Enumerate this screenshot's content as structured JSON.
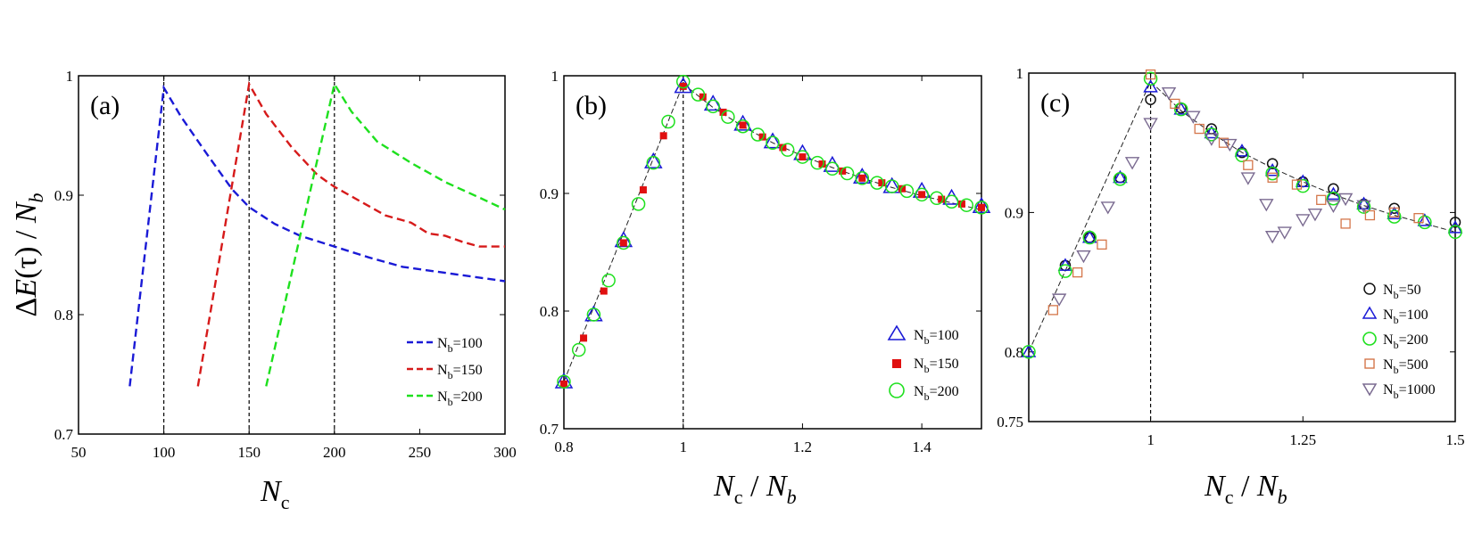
{
  "chart_data": [
    {
      "type": "line",
      "panel": "(a)",
      "ylabel": "ΔE(τ) / N_b",
      "ylabel_parts": {
        "delta": "Δ",
        "E": "E",
        "arg": "(τ)",
        "slash": " / ",
        "N": "N",
        "sub": "b"
      },
      "xlabel": "N_c",
      "xlabel_parts": {
        "N": "N",
        "sub": "c"
      },
      "xlim": [
        50,
        300
      ],
      "ylim": [
        0.7,
        1
      ],
      "xticks": [
        50,
        100,
        150,
        200,
        250,
        300
      ],
      "xtick_labels": [
        "50",
        "100",
        "150",
        "200",
        "250",
        "300"
      ],
      "yticks": [
        0.7,
        0.8,
        0.9,
        1
      ],
      "ytick_labels": [
        "0.7",
        "0.8",
        "0.9",
        "1"
      ],
      "vlines": [
        100,
        150,
        200
      ],
      "legend_position": "bottom-right",
      "series": [
        {
          "name": "N_b=100",
          "legend_main": "N",
          "legend_sub": "b",
          "legend_rest": "=100",
          "color": "#1a1ad6",
          "style": "dashed",
          "x": [
            80,
            100,
            110,
            125,
            140,
            150,
            165,
            180,
            200,
            220,
            240,
            260,
            280,
            300
          ],
          "y": [
            0.74,
            0.99,
            0.966,
            0.935,
            0.905,
            0.89,
            0.876,
            0.866,
            0.857,
            0.848,
            0.84,
            0.836,
            0.832,
            0.828
          ]
        },
        {
          "name": "N_b=150",
          "legend_main": "N",
          "legend_sub": "b",
          "legend_rest": "=150",
          "color": "#d61a1a",
          "style": "dashed",
          "x": [
            120,
            150,
            160,
            175,
            190,
            200,
            215,
            230,
            245,
            255,
            265,
            275,
            285,
            300
          ],
          "y": [
            0.74,
            0.993,
            0.968,
            0.94,
            0.917,
            0.907,
            0.895,
            0.883,
            0.877,
            0.868,
            0.866,
            0.861,
            0.857,
            0.857
          ]
        },
        {
          "name": "N_b=200",
          "legend_main": "N",
          "legend_sub": "b",
          "legend_rest": "=200",
          "color": "#1ee01e",
          "style": "dashed",
          "x": [
            160,
            200,
            210,
            225,
            245,
            265,
            285,
            300
          ],
          "y": [
            0.74,
            0.993,
            0.97,
            0.945,
            0.927,
            0.911,
            0.898,
            0.888
          ]
        }
      ]
    },
    {
      "type": "scatter",
      "panel": "(b)",
      "xlabel": "N_c / N_b",
      "xlabel_parts": {
        "N1": "N",
        "sub1": "c",
        "slash": " / ",
        "N2": "N",
        "sub2": "b"
      },
      "xlim": [
        0.8,
        1.5
      ],
      "ylim": [
        0.7,
        1
      ],
      "xticks": [
        0.8,
        1,
        1.2,
        1.4
      ],
      "xtick_labels": [
        "0.8",
        "1",
        "1.2",
        "1.4"
      ],
      "yticks": [
        0.7,
        0.8,
        0.9,
        1
      ],
      "ytick_labels": [
        "0.7",
        "0.8",
        "0.9",
        "1"
      ],
      "vlines": [
        1
      ],
      "fit_curve": {
        "x": [
          0.8,
          1.0,
          1.05,
          1.1,
          1.15,
          1.2,
          1.25,
          1.3,
          1.35,
          1.4,
          1.45,
          1.5
        ],
        "y": [
          0.74,
          0.993,
          0.973,
          0.957,
          0.943,
          0.932,
          0.922,
          0.913,
          0.905,
          0.898,
          0.892,
          0.886
        ]
      },
      "legend_position": "bottom-right",
      "series": [
        {
          "name": "N_b=100",
          "legend_main": "N",
          "legend_sub": "b",
          "legend_rest": "=100",
          "marker": "triangle",
          "color": "#1a1ad6",
          "x": [
            0.8,
            0.85,
            0.9,
            0.95,
            1.0,
            1.05,
            1.1,
            1.15,
            1.2,
            1.25,
            1.3,
            1.35,
            1.4,
            1.45,
            1.5
          ],
          "y": [
            0.74,
            0.797,
            0.86,
            0.927,
            0.991,
            0.976,
            0.959,
            0.944,
            0.934,
            0.924,
            0.914,
            0.906,
            0.902,
            0.896,
            0.889
          ]
        },
        {
          "name": "N_b=150",
          "legend_main": "N",
          "legend_sub": "b",
          "legend_rest": "=150",
          "marker": "square-filled",
          "color": "#e01010",
          "x": [
            0.8,
            0.833,
            0.867,
            0.9,
            0.933,
            0.967,
            1.0,
            1.033,
            1.067,
            1.1,
            1.133,
            1.167,
            1.2,
            1.233,
            1.267,
            1.3,
            1.333,
            1.367,
            1.4,
            1.433,
            1.467,
            1.5
          ],
          "y": [
            0.738,
            0.777,
            0.817,
            0.858,
            0.903,
            0.949,
            0.991,
            0.982,
            0.969,
            0.958,
            0.948,
            0.939,
            0.931,
            0.925,
            0.919,
            0.913,
            0.909,
            0.904,
            0.899,
            0.895,
            0.891,
            0.888
          ]
        },
        {
          "name": "N_b=200",
          "legend_main": "N",
          "legend_sub": "b",
          "legend_rest": "=200",
          "marker": "circle",
          "color": "#1ee01e",
          "x": [
            0.8,
            0.825,
            0.85,
            0.875,
            0.9,
            0.925,
            0.95,
            0.975,
            1.0,
            1.025,
            1.05,
            1.075,
            1.1,
            1.125,
            1.15,
            1.175,
            1.2,
            1.225,
            1.25,
            1.275,
            1.3,
            1.325,
            1.35,
            1.375,
            1.4,
            1.425,
            1.45,
            1.475,
            1.5
          ],
          "y": [
            0.74,
            0.767,
            0.797,
            0.826,
            0.858,
            0.891,
            0.926,
            0.961,
            0.995,
            0.984,
            0.974,
            0.965,
            0.957,
            0.95,
            0.943,
            0.937,
            0.931,
            0.926,
            0.921,
            0.917,
            0.913,
            0.909,
            0.906,
            0.902,
            0.899,
            0.896,
            0.893,
            0.89,
            0.888
          ]
        }
      ]
    },
    {
      "type": "scatter",
      "panel": "(c)",
      "xlabel": "N_c / N_b",
      "xlabel_parts": {
        "N1": "N",
        "sub1": "c",
        "slash": " / ",
        "N2": "N",
        "sub2": "b"
      },
      "xlim": [
        0.8,
        1.5
      ],
      "ylim": [
        0.75,
        1
      ],
      "xticks": [
        1,
        1.25,
        1.5
      ],
      "xtick_labels": [
        "1",
        "1.25",
        "1.5"
      ],
      "yticks": [
        0.75,
        0.8,
        0.9,
        1
      ],
      "ytick_labels": [
        "0.75",
        "0.8",
        "0.9",
        "1"
      ],
      "vlines": [
        1
      ],
      "fit_curve": {
        "x": [
          0.8,
          1.0,
          1.05,
          1.1,
          1.15,
          1.2,
          1.25,
          1.3,
          1.35,
          1.4,
          1.45,
          1.5
        ],
        "y": [
          0.8,
          0.994,
          0.973,
          0.957,
          0.943,
          0.932,
          0.922,
          0.913,
          0.905,
          0.898,
          0.892,
          0.886
        ]
      },
      "legend_position": "bottom-right",
      "series": [
        {
          "name": "N_b=50",
          "legend_main": "N",
          "legend_sub": "b",
          "legend_rest": "=50",
          "marker": "circle",
          "color": "#111111",
          "x": [
            0.86,
            0.9,
            0.95,
            1.0,
            1.05,
            1.1,
            1.15,
            1.2,
            1.25,
            1.3,
            1.35,
            1.4,
            1.5
          ],
          "y": [
            0.862,
            0.882,
            0.925,
            0.981,
            0.975,
            0.96,
            0.943,
            0.935,
            0.922,
            0.917,
            0.906,
            0.903,
            0.893
          ]
        },
        {
          "name": "N_b=100",
          "legend_main": "N",
          "legend_sub": "b",
          "legend_rest": "=100",
          "marker": "triangle",
          "color": "#1a1ad6",
          "x": [
            0.8,
            0.86,
            0.9,
            0.95,
            1.0,
            1.05,
            1.1,
            1.15,
            1.2,
            1.25,
            1.3,
            1.35,
            1.4,
            1.45,
            1.5
          ],
          "y": [
            0.8,
            0.862,
            0.882,
            0.925,
            0.99,
            0.974,
            0.957,
            0.944,
            0.93,
            0.922,
            0.913,
            0.906,
            0.899,
            0.894,
            0.889
          ]
        },
        {
          "name": "N_b=200",
          "legend_main": "N",
          "legend_sub": "b",
          "legend_rest": "=200",
          "marker": "circle",
          "color": "#1ee01e",
          "x": [
            0.8,
            0.86,
            0.9,
            0.95,
            1.0,
            1.05,
            1.1,
            1.15,
            1.2,
            1.25,
            1.3,
            1.35,
            1.4,
            1.45,
            1.5
          ],
          "y": [
            0.8,
            0.858,
            0.882,
            0.924,
            0.996,
            0.974,
            0.956,
            0.941,
            0.928,
            0.919,
            0.91,
            0.904,
            0.897,
            0.893,
            0.886
          ]
        },
        {
          "name": "N_b=500",
          "legend_main": "N",
          "legend_sub": "b",
          "legend_rest": "=500",
          "marker": "square",
          "color": "#d4764a",
          "x": [
            0.84,
            0.88,
            0.92,
            1.0,
            1.04,
            1.08,
            1.12,
            1.16,
            1.2,
            1.24,
            1.28,
            1.32,
            1.36,
            1.4,
            1.44
          ],
          "y": [
            0.83,
            0.857,
            0.877,
            0.999,
            0.978,
            0.96,
            0.95,
            0.934,
            0.925,
            0.92,
            0.909,
            0.892,
            0.898,
            0.9,
            0.896
          ]
        },
        {
          "name": "N_b=1000",
          "legend_main": "N",
          "legend_sub": "b",
          "legend_rest": "=1000",
          "marker": "triangle-down",
          "color": "#7a6a90",
          "x": [
            0.85,
            0.89,
            0.93,
            0.97,
            1.0,
            1.03,
            1.07,
            1.1,
            1.13,
            1.16,
            1.19,
            1.2,
            1.22,
            1.25,
            1.27,
            1.3,
            1.32,
            1.35
          ],
          "y": [
            0.838,
            0.869,
            0.904,
            0.936,
            0.964,
            0.986,
            0.969,
            0.953,
            0.949,
            0.925,
            0.906,
            0.883,
            0.886,
            0.895,
            0.899,
            0.905,
            0.91,
            0.905
          ]
        }
      ]
    }
  ]
}
